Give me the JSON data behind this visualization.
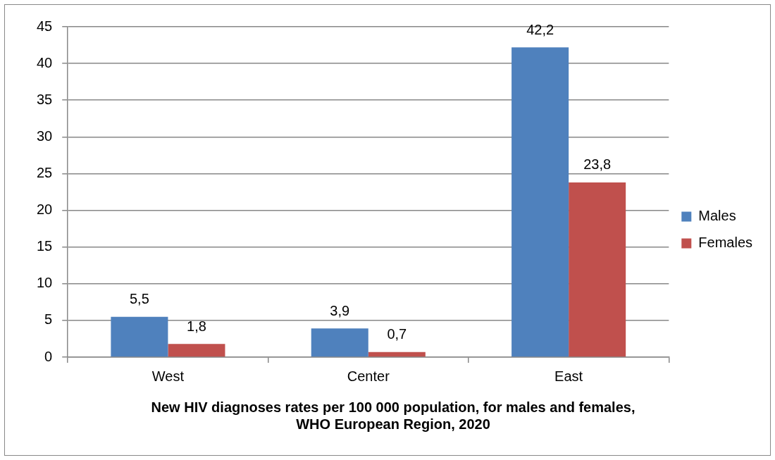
{
  "chart_data": {
    "type": "bar",
    "title": "New HIV diagnoses rates per 100 000 population, for males and females,\nWHO European Region, 2020",
    "categories": [
      "West",
      "Center",
      "East"
    ],
    "series": [
      {
        "name": "Males",
        "color": "#4f81bd",
        "values": [
          5.5,
          3.9,
          42.2
        ],
        "value_labels": [
          "5,5",
          "3,9",
          "42,2"
        ]
      },
      {
        "name": "Females",
        "color": "#c0504d",
        "values": [
          1.8,
          0.7,
          23.8
        ],
        "value_labels": [
          "1,8",
          "0,7",
          "23,8"
        ]
      }
    ],
    "ylim": [
      0,
      45
    ],
    "yticks": [
      0,
      5,
      10,
      15,
      20,
      25,
      30,
      35,
      40,
      45
    ],
    "grid": "y",
    "legend": "right"
  }
}
